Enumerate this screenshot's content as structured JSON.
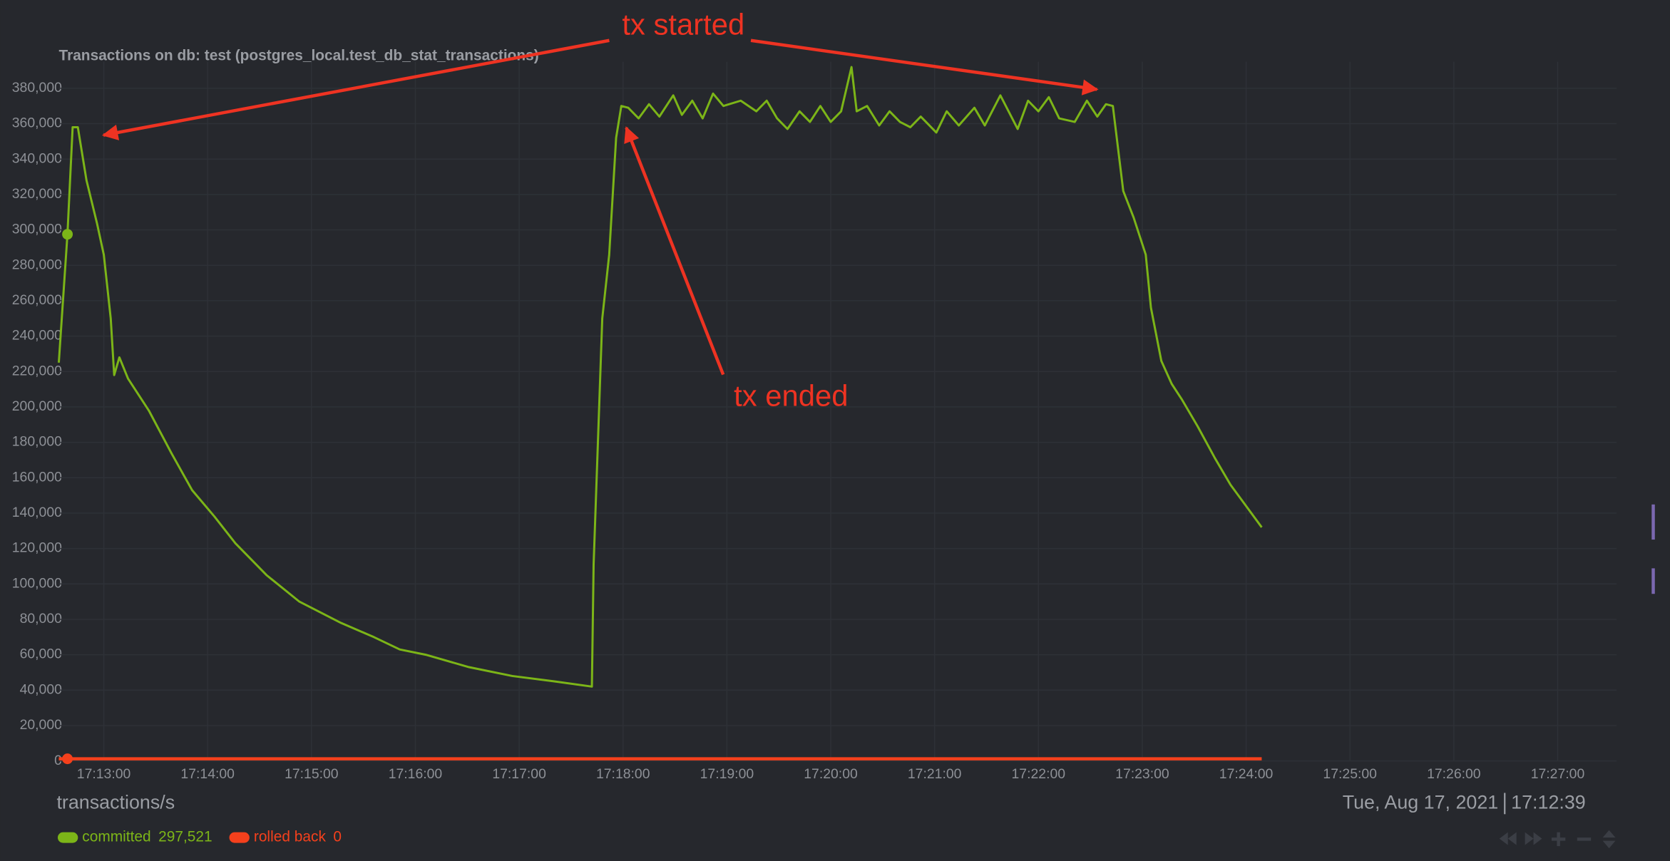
{
  "chart_data": {
    "type": "line",
    "title": "Transactions on db: test (postgres_local.test_db_stat_transactions)",
    "units": "transactions/s",
    "selected_date": "Tue, Aug 17, 2021",
    "selected_time": "17:12:39",
    "annotations": [
      {
        "text": "tx started"
      },
      {
        "text": "tx ended"
      }
    ],
    "x": [
      "17:12:34",
      "17:12:39",
      "17:12:42",
      "17:12:45",
      "17:12:50",
      "17:12:56",
      "17:13:00",
      "17:13:04",
      "17:13:06",
      "17:13:09",
      "17:13:14",
      "17:13:26",
      "17:13:39",
      "17:13:51",
      "17:14:04",
      "17:14:16",
      "17:14:34",
      "17:14:53",
      "17:15:17",
      "17:15:36",
      "17:15:51",
      "17:16:06",
      "17:16:31",
      "17:16:56",
      "17:17:20",
      "17:17:42",
      "17:17:43",
      "17:17:48",
      "17:17:52",
      "17:17:56",
      "17:17:59",
      "17:18:03",
      "17:18:09",
      "17:18:15",
      "17:18:21",
      "17:18:29",
      "17:18:34",
      "17:18:40",
      "17:18:46",
      "17:18:52",
      "17:18:58",
      "17:19:08",
      "17:19:17",
      "17:19:23",
      "17:19:29",
      "17:19:35",
      "17:19:42",
      "17:19:48",
      "17:19:54",
      "17:20:00",
      "17:20:06",
      "17:20:12",
      "17:20:15",
      "17:20:21",
      "17:20:28",
      "17:20:34",
      "17:20:40",
      "17:20:46",
      "17:20:52",
      "17:21:01",
      "17:21:07",
      "17:21:14",
      "17:21:23",
      "17:21:29",
      "17:21:38",
      "17:21:48",
      "17:21:54",
      "17:22:00",
      "17:22:06",
      "17:22:12",
      "17:22:21",
      "17:22:28",
      "17:22:34",
      "17:22:39",
      "17:22:43",
      "17:22:46",
      "17:22:49",
      "17:22:55",
      "17:23:02",
      "17:23:05",
      "17:23:11",
      "17:23:17",
      "17:23:23",
      "17:23:32",
      "17:23:42",
      "17:23:51",
      "17:24:00",
      "17:24:09"
    ],
    "series": [
      {
        "name": "committed",
        "color": "#7cb518",
        "legend_value": {
          "value": 297521,
          "label": "297,521"
        },
        "values": [
          225000,
          297521,
          358000,
          358000,
          328000,
          304000,
          286000,
          250000,
          218000,
          228000,
          216000,
          198000,
          174000,
          153000,
          138000,
          123000,
          105000,
          90000,
          78000,
          70000,
          63000,
          60000,
          53000,
          48000,
          45000,
          42000,
          111000,
          250000,
          286000,
          352000,
          370000,
          369000,
          363000,
          371000,
          364000,
          376000,
          365000,
          373000,
          363000,
          377000,
          370000,
          373000,
          367000,
          373000,
          363000,
          357000,
          367000,
          361000,
          370000,
          361000,
          367000,
          392000,
          367000,
          370000,
          359000,
          367000,
          361000,
          358000,
          364000,
          355000,
          367000,
          359000,
          369000,
          359000,
          376000,
          357000,
          373000,
          367000,
          375000,
          363000,
          361000,
          373000,
          364000,
          371000,
          370000,
          346000,
          322000,
          307000,
          286000,
          256000,
          226000,
          213000,
          204000,
          189000,
          171000,
          156000,
          144000,
          132000
        ]
      },
      {
        "name": "rolled back",
        "color": "#f4401c",
        "legend_value": 0,
        "values": [
          0,
          0,
          0,
          0,
          0,
          0,
          0,
          0,
          0,
          0,
          0,
          0,
          0,
          0,
          0,
          0,
          0,
          0,
          0,
          0,
          0,
          0,
          0,
          0,
          0,
          0,
          0,
          0,
          0,
          0,
          0,
          0,
          0,
          0,
          0,
          0,
          0,
          0,
          0,
          0,
          0,
          0,
          0,
          0,
          0,
          0,
          0,
          0,
          0,
          0,
          0,
          0,
          0,
          0,
          0,
          0,
          0,
          0,
          0,
          0,
          0,
          0,
          0,
          0,
          0,
          0,
          0,
          0,
          0,
          0,
          0,
          0,
          0,
          0,
          0,
          0,
          0,
          0,
          0,
          0,
          0,
          0,
          0,
          0,
          0,
          0,
          0,
          0
        ]
      }
    ],
    "xlim": [
      "17:12:34",
      "17:27:34"
    ],
    "xticks": [
      "17:13:00",
      "17:14:00",
      "17:15:00",
      "17:16:00",
      "17:17:00",
      "17:18:00",
      "17:19:00",
      "17:20:00",
      "17:21:00",
      "17:22:00",
      "17:23:00",
      "17:24:00",
      "17:25:00",
      "17:26:00",
      "17:27:00"
    ],
    "ylim": [
      0,
      395000
    ],
    "yticks": [
      0,
      {
        "value": 20000,
        "label": "20,000"
      },
      {
        "value": 40000,
        "label": "40,000"
      },
      {
        "value": 60000,
        "label": "60,000"
      },
      {
        "value": 80000,
        "label": "80,000"
      },
      {
        "value": 100000,
        "label": "100,000"
      },
      {
        "value": 120000,
        "label": "120,000"
      },
      {
        "value": 140000,
        "label": "140,000"
      },
      {
        "value": 160000,
        "label": "160,000"
      },
      {
        "value": 180000,
        "label": "180,000"
      },
      {
        "value": 200000,
        "label": "200,000"
      },
      {
        "value": 220000,
        "label": "220,000"
      },
      {
        "value": 240000,
        "label": "240,000"
      },
      {
        "value": 260000,
        "label": "260,000"
      },
      {
        "value": 280000,
        "label": "280,000"
      },
      {
        "value": 300000,
        "label": "300,000"
      },
      {
        "value": 320000,
        "label": "320,000"
      },
      {
        "value": 340000,
        "label": "340,000"
      },
      {
        "value": 360000,
        "label": "360,000"
      },
      {
        "value": 380000,
        "label": "380,000"
      }
    ],
    "grid": true
  }
}
